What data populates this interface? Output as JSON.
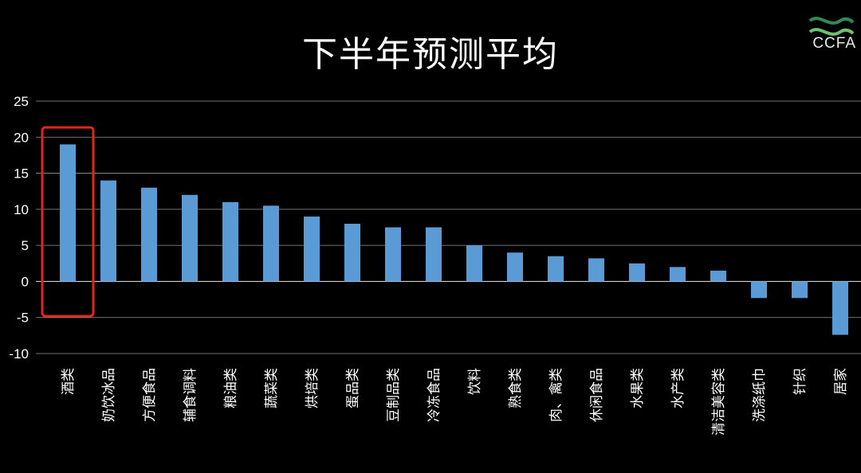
{
  "title": "下半年预测平均",
  "logo": {
    "text": "CCFA",
    "colors": [
      "#2e8b57",
      "#6fbf73"
    ]
  },
  "highlight": {
    "category": "酒类",
    "color": "#e0261d"
  },
  "chart_data": {
    "type": "bar",
    "title": "下半年预测平均",
    "xlabel": "",
    "ylabel": "",
    "categories": [
      "酒类",
      "奶饮冰品",
      "方便食品",
      "辅食调料",
      "粮油类",
      "蔬菜类",
      "烘培类",
      "蛋品类",
      "豆制品类",
      "冷冻食品",
      "饮料",
      "熟食类",
      "肉、禽类",
      "休闲食品",
      "水果类",
      "水产类",
      "清洁美容类",
      "洗涤纸巾",
      "针织",
      "居家"
    ],
    "values": [
      19,
      14,
      13,
      12,
      11,
      10.5,
      9,
      8,
      7.5,
      7.5,
      5,
      4,
      3.5,
      3.2,
      2.5,
      2,
      1.5,
      -2.3,
      -2.3,
      -7.4
    ],
    "ylim": [
      -10,
      25
    ],
    "yticks": [
      -10,
      -5,
      0,
      5,
      10,
      15,
      20,
      25
    ],
    "grid": true,
    "bar_color": "#5b9bd5",
    "legend": "none"
  }
}
